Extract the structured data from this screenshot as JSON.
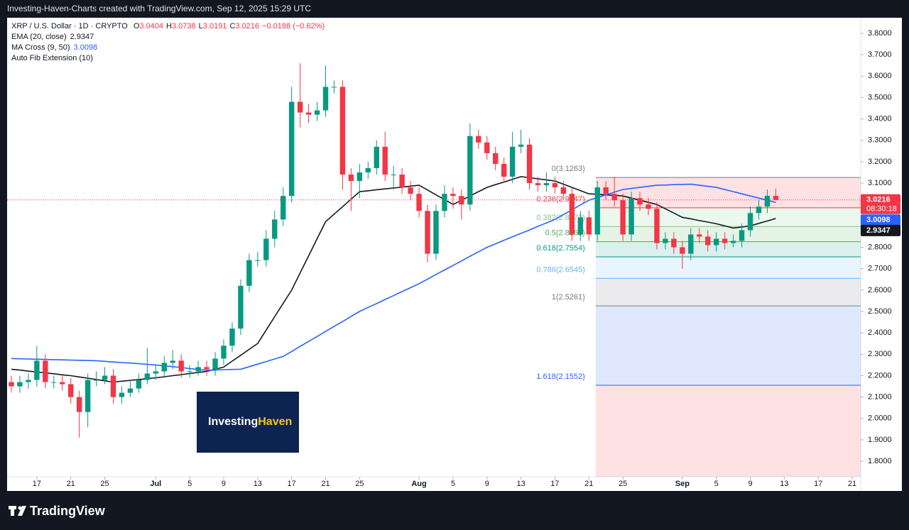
{
  "header": "Investing-Haven-Charts created with TradingView.com, Sep 12, 2025 15:29 UTC",
  "footer": "TradingView",
  "watermark": [
    "Investing",
    "Haven"
  ],
  "chart_data": {
    "type": "candlestick",
    "symbol": "XRP / U.S. Dollar · 1D · CRYPTO",
    "ohlc_labels": [
      "O",
      "H",
      "L",
      "C"
    ],
    "change": "−0.0188 (−0.62%)",
    "countdown": "08:30:18",
    "up_color": "#089981",
    "down_color": "#f23645",
    "open": [
      2.17,
      2.15,
      2.17,
      2.18,
      2.27,
      2.17,
      2.17,
      2.16,
      2.1,
      2.03,
      2.18,
      2.18,
      2.2,
      2.1,
      2.12,
      2.14,
      2.18,
      2.21,
      2.22,
      2.26,
      2.27,
      2.22,
      2.22,
      2.24,
      2.23,
      2.28,
      2.34,
      2.42,
      2.62,
      2.74,
      2.74,
      2.84,
      2.93,
      3.04,
      3.48,
      3.43,
      3.42,
      3.44,
      3.55,
      3.55,
      3.14,
      3.11,
      3.15,
      3.17,
      3.27,
      3.14,
      3.14,
      3.08,
      3.05,
      2.97,
      2.77,
      2.97,
      3.05,
      3.04,
      3.0,
      3.32,
      3.29,
      3.24,
      3.19,
      3.13,
      3.27,
      3.28,
      3.1,
      3.09,
      3.1,
      3.08,
      3.05,
      2.86,
      2.94,
      2.86,
      3.08,
      3.05,
      3.02,
      2.86,
      3.03,
      3.0,
      2.98,
      2.82,
      2.84,
      2.8,
      2.77,
      2.86,
      2.85,
      2.81,
      2.84,
      2.82,
      2.83,
      2.88,
      2.96,
      2.99,
      3.0404
    ],
    "high": [
      2.2,
      2.2,
      2.21,
      2.34,
      2.3,
      2.2,
      2.2,
      2.19,
      2.13,
      2.21,
      2.22,
      2.24,
      2.23,
      2.15,
      2.18,
      2.21,
      2.33,
      2.25,
      2.29,
      2.32,
      2.3,
      2.25,
      2.27,
      2.27,
      2.31,
      2.37,
      2.45,
      2.65,
      2.77,
      2.78,
      2.88,
      2.97,
      3.08,
      3.55,
      3.66,
      3.47,
      3.48,
      3.65,
      3.58,
      3.58,
      3.17,
      3.19,
      3.2,
      3.3,
      3.34,
      3.18,
      3.17,
      3.11,
      3.08,
      3.0,
      3.0,
      3.09,
      3.08,
      3.07,
      3.38,
      3.35,
      3.32,
      3.27,
      3.22,
      3.34,
      3.35,
      3.31,
      3.13,
      3.15,
      3.13,
      3.11,
      3.08,
      2.97,
      2.97,
      3.11,
      3.11,
      3.13,
      3.05,
      3.06,
      3.06,
      3.03,
      3.01,
      2.87,
      2.87,
      2.83,
      2.89,
      2.89,
      2.88,
      2.87,
      2.87,
      2.86,
      2.91,
      2.99,
      3.02,
      3.07,
      3.0738
    ],
    "low": [
      2.12,
      2.12,
      2.14,
      2.15,
      2.14,
      2.14,
      2.13,
      2.07,
      1.91,
      1.96,
      2.15,
      2.16,
      2.07,
      2.07,
      2.1,
      2.12,
      2.16,
      2.18,
      2.19,
      2.23,
      2.19,
      2.19,
      2.2,
      2.2,
      2.2,
      2.25,
      2.31,
      2.39,
      2.59,
      2.71,
      2.71,
      2.8,
      2.9,
      3.01,
      3.36,
      3.38,
      3.39,
      3.41,
      3.52,
      3.07,
      2.97,
      3.03,
      3.12,
      3.14,
      3.11,
      3.07,
      3.05,
      3.02,
      2.94,
      2.73,
      2.74,
      2.94,
      2.98,
      2.93,
      2.97,
      3.26,
      3.21,
      3.16,
      3.1,
      3.1,
      3.24,
      3.07,
      3.06,
      3.06,
      3.05,
      3.02,
      2.83,
      2.83,
      2.83,
      2.83,
      3.02,
      2.99,
      2.83,
      2.83,
      2.97,
      2.95,
      2.79,
      2.79,
      2.77,
      2.7,
      2.74,
      2.82,
      2.78,
      2.78,
      2.79,
      2.8,
      2.8,
      2.85,
      2.93,
      2.96,
      3.0191
    ],
    "close": [
      2.15,
      2.17,
      2.18,
      2.27,
      2.17,
      2.17,
      2.16,
      2.1,
      2.03,
      2.18,
      2.18,
      2.2,
      2.1,
      2.12,
      2.14,
      2.18,
      2.21,
      2.22,
      2.26,
      2.27,
      2.22,
      2.22,
      2.24,
      2.23,
      2.28,
      2.34,
      2.42,
      2.62,
      2.74,
      2.74,
      2.84,
      2.93,
      3.04,
      3.48,
      3.43,
      3.42,
      3.44,
      3.55,
      3.55,
      3.14,
      3.11,
      3.15,
      3.17,
      3.27,
      3.14,
      3.14,
      3.08,
      3.05,
      2.97,
      2.77,
      2.97,
      3.05,
      3.04,
      3.0,
      3.32,
      3.29,
      3.24,
      3.19,
      3.13,
      3.27,
      3.28,
      3.1,
      3.09,
      3.1,
      3.08,
      3.05,
      2.86,
      2.94,
      2.86,
      3.08,
      3.05,
      3.02,
      2.86,
      3.03,
      3.0,
      2.98,
      2.82,
      2.84,
      2.8,
      2.77,
      2.86,
      2.85,
      2.81,
      2.84,
      2.82,
      2.83,
      2.88,
      2.96,
      2.99,
      3.0404,
      3.0216
    ],
    "lines": [
      {
        "name": "EMA (20, close)",
        "color": "#131722",
        "values": [
          2.23,
          2.226,
          2.221,
          2.217,
          2.213,
          2.209,
          2.204,
          2.2,
          2.194,
          2.188,
          2.182,
          2.176,
          2.17,
          2.174,
          2.178,
          2.182,
          2.186,
          2.19,
          2.195,
          2.2,
          2.205,
          2.21,
          2.215,
          2.22,
          2.23,
          2.24,
          2.268,
          2.295,
          2.323,
          2.35,
          2.413,
          2.475,
          2.538,
          2.6,
          2.68,
          2.76,
          2.84,
          2.92,
          2.955,
          2.99,
          3.025,
          3.06,
          3.064,
          3.069,
          3.073,
          3.077,
          3.081,
          3.086,
          3.09,
          3.068,
          3.045,
          3.023,
          3.0,
          3.02,
          3.04,
          3.06,
          3.08,
          3.093,
          3.105,
          3.118,
          3.13,
          3.125,
          3.12,
          3.115,
          3.11,
          3.095,
          3.08,
          3.065,
          3.05,
          3.048,
          3.045,
          3.043,
          3.04,
          3.03,
          3.02,
          3.01,
          3.0,
          2.98,
          2.96,
          2.94,
          2.933,
          2.925,
          2.918,
          2.91,
          2.9,
          2.89,
          2.895,
          2.9,
          2.912,
          2.923,
          2.9347
        ]
      },
      {
        "name": "MA Cross (9, 50)",
        "color": "#2962ff",
        "values": [
          2.28,
          2.279,
          2.278,
          2.277,
          2.276,
          2.275,
          2.274,
          2.273,
          2.272,
          2.271,
          2.27,
          2.267,
          2.264,
          2.261,
          2.259,
          2.256,
          2.253,
          2.25,
          2.246,
          2.242,
          2.238,
          2.233,
          2.229,
          2.225,
          2.226,
          2.228,
          2.229,
          2.23,
          2.242,
          2.254,
          2.266,
          2.278,
          2.29,
          2.313,
          2.337,
          2.36,
          2.383,
          2.407,
          2.43,
          2.453,
          2.477,
          2.5,
          2.519,
          2.537,
          2.556,
          2.574,
          2.593,
          2.611,
          2.63,
          2.651,
          2.673,
          2.694,
          2.715,
          2.736,
          2.758,
          2.779,
          2.8,
          2.816,
          2.833,
          2.849,
          2.865,
          2.881,
          2.898,
          2.914,
          2.93,
          2.953,
          2.975,
          2.998,
          3.02,
          3.033,
          3.045,
          3.058,
          3.07,
          3.075,
          3.08,
          3.085,
          3.09,
          3.091,
          3.093,
          3.094,
          3.095,
          3.09,
          3.085,
          3.08,
          3.07,
          3.06,
          3.05,
          3.04,
          3.03,
          3.02,
          3.0098
        ]
      }
    ],
    "fib": {
      "name": "Auto Fib Extension (10)",
      "start": 68.8,
      "below_color": "#f23645",
      "levels": [
        {
          "label": "0(3.1263)",
          "value": 3.1263,
          "color": "#787b86"
        },
        {
          "label": "0.236(2.9847)",
          "value": 2.9847,
          "color": "#f23645"
        },
        {
          "label": "0.382(2.8970)",
          "value": 2.897,
          "color": "#81c784"
        },
        {
          "label": "0.5(2.8262)",
          "value": 2.8262,
          "color": "#4caf50"
        },
        {
          "label": "0.618(2.7554)",
          "value": 2.7554,
          "color": "#089981"
        },
        {
          "label": "0.786(2.6545)",
          "value": 2.6545,
          "color": "#64b5f6"
        },
        {
          "label": "1(2.5261)",
          "value": 2.5261,
          "color": "#787b86"
        },
        {
          "label": "1.618(2.1552)",
          "value": 2.1552,
          "color": "#2962ff"
        }
      ]
    },
    "xlim": [
      -0.5,
      100
    ],
    "xticks": [
      {
        "value": 3,
        "label": "17"
      },
      {
        "value": 7,
        "label": "21"
      },
      {
        "value": 11,
        "label": "25"
      },
      {
        "value": 17,
        "label": "Jul"
      },
      {
        "value": 21,
        "label": "5"
      },
      {
        "value": 25,
        "label": "9"
      },
      {
        "value": 29,
        "label": "13"
      },
      {
        "value": 33,
        "label": "17"
      },
      {
        "value": 37,
        "label": "21"
      },
      {
        "value": 41,
        "label": "25"
      },
      {
        "value": 48,
        "label": "Aug"
      },
      {
        "value": 52,
        "label": "5"
      },
      {
        "value": 56,
        "label": "9"
      },
      {
        "value": 60,
        "label": "13"
      },
      {
        "value": 64,
        "label": "17"
      },
      {
        "value": 68,
        "label": "21"
      },
      {
        "value": 72,
        "label": "25"
      },
      {
        "value": 79,
        "label": "Sep"
      },
      {
        "value": 83,
        "label": "5"
      },
      {
        "value": 87,
        "label": "9"
      },
      {
        "value": 91,
        "label": "13"
      },
      {
        "value": 95,
        "label": "17"
      },
      {
        "value": 99,
        "label": "21"
      }
    ],
    "ylim": [
      1.661,
      3.873
    ],
    "yticks": [
      {
        "value": 1.8,
        "label": "1.8000"
      },
      {
        "value": 1.9,
        "label": "1.9000"
      },
      {
        "value": 2.0,
        "label": "2.0000"
      },
      {
        "value": 2.1,
        "label": "2.1000"
      },
      {
        "value": 2.2,
        "label": "2.2000"
      },
      {
        "value": 2.3,
        "label": "2.3000"
      },
      {
        "value": 2.4,
        "label": "2.4000"
      },
      {
        "value": 2.5,
        "label": "2.5000"
      },
      {
        "value": 2.6,
        "label": "2.6000"
      },
      {
        "value": 2.7,
        "label": "2.7000"
      },
      {
        "value": 2.8,
        "label": "2.8000"
      },
      {
        "value": 2.9,
        "label": "2.9000"
      },
      {
        "value": 3.0,
        "label": "3.0000"
      },
      {
        "value": 3.1,
        "label": "3.1000"
      },
      {
        "value": 3.2,
        "label": "3.2000"
      },
      {
        "value": 3.3,
        "label": "3.3000"
      },
      {
        "value": 3.4,
        "label": "3.4000"
      },
      {
        "value": 3.5,
        "label": "3.5000"
      },
      {
        "value": 3.6,
        "label": "3.6000"
      },
      {
        "value": 3.7,
        "label": "3.7000"
      },
      {
        "value": 3.8,
        "label": "3.8000"
      }
    ],
    "grid": false
  }
}
